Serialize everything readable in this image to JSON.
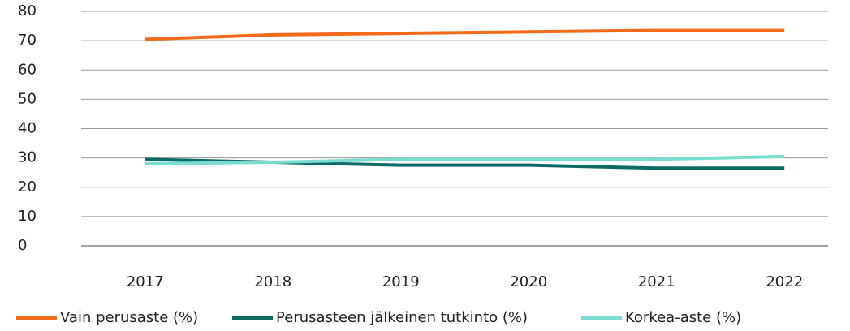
{
  "chart_data": {
    "type": "line",
    "categories": [
      "2017",
      "2018",
      "2019",
      "2020",
      "2021",
      "2022"
    ],
    "series": [
      {
        "name": "Vain perusaste (%)",
        "color": "#f26b1d",
        "values": [
          70.5,
          72,
          72.5,
          73,
          73.5,
          73.5
        ]
      },
      {
        "name": "Perusasteen jälkeinen tutkinto (%)",
        "color": "#0e6b63",
        "values": [
          29.5,
          28.5,
          27.5,
          27.5,
          26.5,
          26.5
        ]
      },
      {
        "name": "Korkea-aste (%)",
        "color": "#79dccf",
        "values": [
          28,
          28.5,
          29.5,
          29.5,
          29.5,
          30.5
        ]
      }
    ],
    "ylim": [
      0,
      80
    ],
    "yticks": [
      0,
      10,
      20,
      30,
      40,
      50,
      60,
      70,
      80
    ],
    "grid": true,
    "legend": "bottom"
  }
}
